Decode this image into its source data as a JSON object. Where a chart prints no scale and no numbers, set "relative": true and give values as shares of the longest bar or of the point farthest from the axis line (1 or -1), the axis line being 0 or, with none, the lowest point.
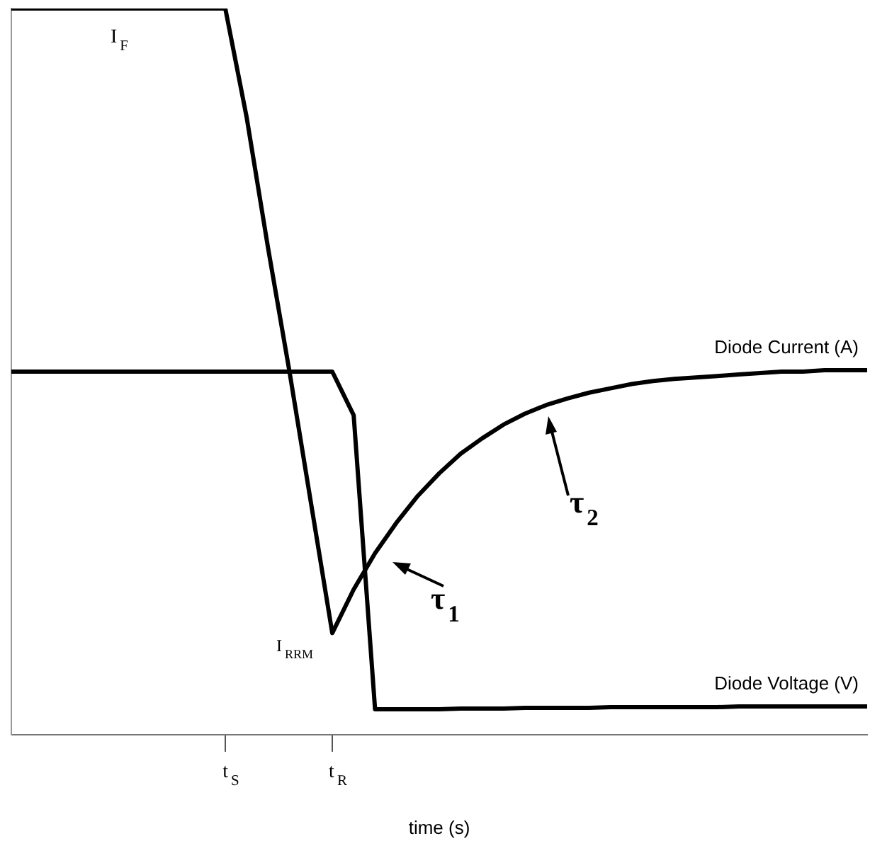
{
  "chart_data": {
    "type": "line",
    "relative": true,
    "xlabel": "time (s)",
    "categories": [
      null,
      null,
      null,
      null,
      null,
      null,
      null,
      null,
      null,
      null,
      "t$_{S}$",
      null,
      null,
      null,
      null,
      "t$_{R}$",
      null,
      null,
      null,
      null,
      null,
      null,
      null,
      null,
      null,
      null,
      null,
      null,
      null,
      null,
      null,
      null,
      null,
      null,
      null,
      null,
      null,
      null,
      null,
      null,
      null
    ],
    "series": [
      {
        "name": "Diode Current (A)",
        "color": "#000000",
        "values": [
          1,
          1,
          1,
          1,
          1,
          1,
          1,
          1,
          1,
          1,
          1,
          0.85,
          0.67,
          0.5,
          0.32,
          0.14,
          0.2,
          0.25,
          0.292,
          0.329,
          0.36,
          0.387,
          0.408,
          0.427,
          0.442,
          0.454,
          0.463,
          0.471,
          0.477,
          0.483,
          0.487,
          0.49,
          0.492,
          0.494,
          0.496,
          0.498,
          0.5,
          0.5,
          0.502,
          0.502,
          0.502
        ]
      },
      {
        "name": "Diode Voltage (V)",
        "color": "#000000",
        "values": [
          0.5,
          0.5,
          0.5,
          0.5,
          0.5,
          0.5,
          0.5,
          0.5,
          0.5,
          0.5,
          0.5,
          0.5,
          0.5,
          0.5,
          0.5,
          0.5,
          0.44,
          0.035,
          0.035,
          0.035,
          0.035,
          0.036,
          0.036,
          0.036,
          0.037,
          0.037,
          0.037,
          0.037,
          0.038,
          0.038,
          0.038,
          0.038,
          0.038,
          0.038,
          0.039,
          0.039,
          0.039,
          0.039,
          0.039,
          0.039,
          0.039
        ]
      }
    ],
    "annotations": [
      "I$_{F}$",
      "I$_{RRM}$",
      "τ$_{1}$",
      "τ$_{2}$"
    ],
    "legend": false,
    "grid": false
  }
}
